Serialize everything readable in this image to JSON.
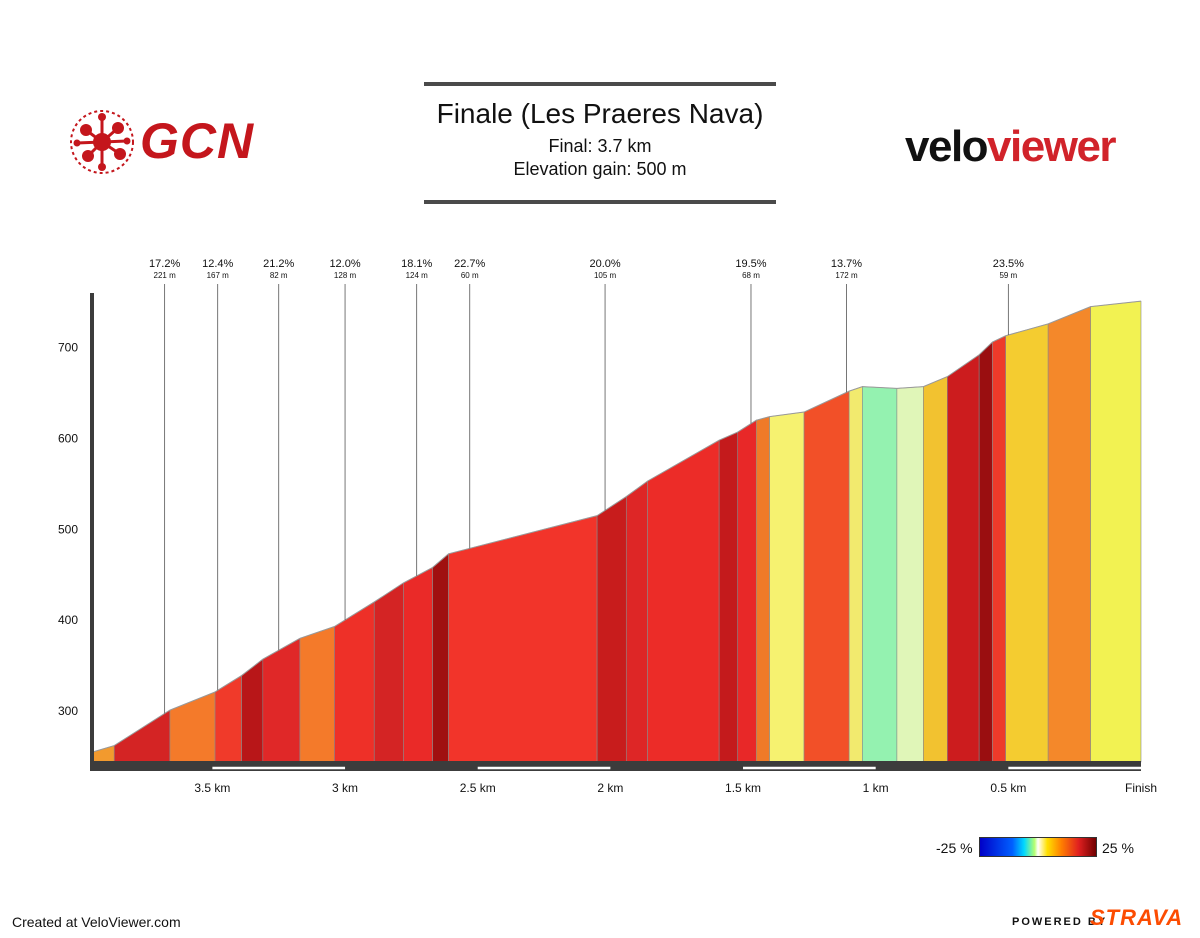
{
  "title": "Finale (Les Praeres Nava)",
  "subtitle_final": "Final: 3.7 km",
  "subtitle_gain": "Elevation gain: 500 m",
  "logos": {
    "left_brand": "GCN",
    "right_brand_part1": "velo",
    "right_brand_part2": "viewer",
    "strava_prefix": "POWERED BY",
    "strava": "STRAVA"
  },
  "footer": {
    "created": "Created at VeloViewer.com"
  },
  "legend": {
    "min_label": "-25 %",
    "max_label": "25 %"
  },
  "colors": {
    "gcn_red": "#c4161c",
    "strava_orange": "#fc4c02"
  },
  "chart_data": {
    "type": "area",
    "xlim_km_to_finish": [
      3.95,
      0
    ],
    "ylim": [
      245,
      760
    ],
    "y_ticks": [
      {
        "value": 300,
        "label": "300"
      },
      {
        "value": 400,
        "label": "400"
      },
      {
        "value": 500,
        "label": "500"
      },
      {
        "value": 600,
        "label": "600"
      },
      {
        "value": 700,
        "label": "700"
      }
    ],
    "x_ticks": [
      {
        "value": 3.5,
        "label": "3.5 km"
      },
      {
        "value": 3.0,
        "label": "3 km"
      },
      {
        "value": 2.5,
        "label": "2.5 km"
      },
      {
        "value": 2.0,
        "label": "2 km"
      },
      {
        "value": 1.5,
        "label": "1.5 km"
      },
      {
        "value": 1.0,
        "label": "1 km"
      },
      {
        "value": 0.5,
        "label": "0.5 km"
      },
      {
        "value": 0.0,
        "label": "Finish"
      }
    ],
    "profile": [
      {
        "x": 3.95,
        "y": 255,
        "color": "#f29a2e"
      },
      {
        "x": 3.87,
        "y": 262,
        "color": "#d42424"
      },
      {
        "x": 3.66,
        "y": 301,
        "color": "#f47a2a"
      },
      {
        "x": 3.49,
        "y": 321,
        "color": "#f03a2a"
      },
      {
        "x": 3.39,
        "y": 339,
        "color": "#b81618"
      },
      {
        "x": 3.31,
        "y": 357,
        "color": "#e02828"
      },
      {
        "x": 3.17,
        "y": 380,
        "color": "#f47a2a"
      },
      {
        "x": 3.04,
        "y": 393,
        "color": "#ee3028"
      },
      {
        "x": 2.89,
        "y": 420,
        "color": "#d42424"
      },
      {
        "x": 2.78,
        "y": 441,
        "color": "#ea2a28"
      },
      {
        "x": 2.67,
        "y": 458,
        "color": "#a01010"
      },
      {
        "x": 2.61,
        "y": 473,
        "color": "#f2342a"
      },
      {
        "x": 2.05,
        "y": 515,
        "color": "#c81c1c"
      },
      {
        "x": 1.94,
        "y": 536,
        "color": "#de2626"
      },
      {
        "x": 1.86,
        "y": 553,
        "color": "#ec2c28"
      },
      {
        "x": 1.59,
        "y": 598,
        "color": "#c41a1c"
      },
      {
        "x": 1.52,
        "y": 607,
        "color": "#e82828"
      },
      {
        "x": 1.45,
        "y": 620,
        "color": "#f07a28"
      },
      {
        "x": 1.4,
        "y": 624,
        "color": "#f6f270"
      },
      {
        "x": 1.27,
        "y": 629,
        "color": "#f25028"
      },
      {
        "x": 1.1,
        "y": 652,
        "color": "#f2ea6e"
      },
      {
        "x": 1.05,
        "y": 657,
        "color": "#94f2b0"
      },
      {
        "x": 0.92,
        "y": 655,
        "color": "#e0f6b8"
      },
      {
        "x": 0.82,
        "y": 657,
        "color": "#f2c230"
      },
      {
        "x": 0.73,
        "y": 668,
        "color": "#cc1c1e"
      },
      {
        "x": 0.61,
        "y": 692,
        "color": "#9a0e10"
      },
      {
        "x": 0.56,
        "y": 706,
        "color": "#ee3a2a"
      },
      {
        "x": 0.51,
        "y": 713,
        "color": "#f4cc30"
      },
      {
        "x": 0.35,
        "y": 726,
        "color": "#f4882a"
      },
      {
        "x": 0.19,
        "y": 745,
        "color": "#f2f252"
      },
      {
        "x": 0.0,
        "y": 751
      }
    ],
    "annotations": [
      {
        "x": 3.68,
        "grade": "17.2%",
        "length": "221 m"
      },
      {
        "x": 3.48,
        "grade": "12.4%",
        "length": "167 m"
      },
      {
        "x": 3.25,
        "grade": "21.2%",
        "length": "82 m"
      },
      {
        "x": 3.0,
        "grade": "12.0%",
        "length": "128 m"
      },
      {
        "x": 2.73,
        "grade": "18.1%",
        "length": "124 m"
      },
      {
        "x": 2.53,
        "grade": "22.7%",
        "length": "60 m"
      },
      {
        "x": 2.02,
        "grade": "20.0%",
        "length": "105 m"
      },
      {
        "x": 1.47,
        "grade": "19.5%",
        "length": "68 m"
      },
      {
        "x": 1.11,
        "grade": "13.7%",
        "length": "172 m"
      },
      {
        "x": 0.5,
        "grade": "23.5%",
        "length": "59 m"
      }
    ]
  }
}
